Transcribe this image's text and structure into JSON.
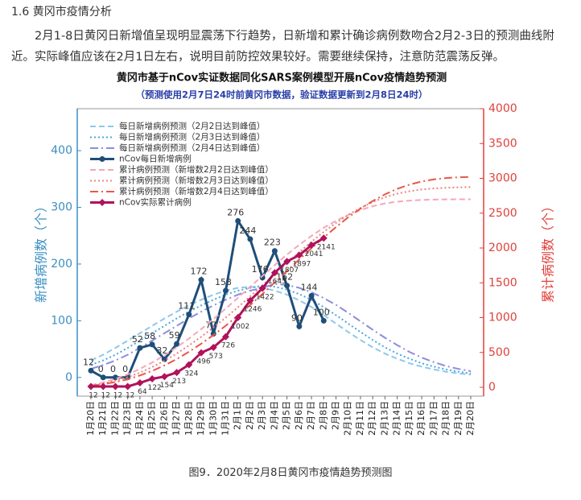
{
  "heading": "1.6  黄冈市疫情分析",
  "paragraph": "2月1-8日黄冈日新增值呈现明显震荡下行趋势，日新增和累计确诊病例数吻合2月2-3日的预测曲线附近。实际峰值应该在2月1日左右，说明目前防控效果较好。需要继续保持，注意防范震荡反弹。",
  "caption": "图9．2020年2月8日黄冈市疫情趋势预测图",
  "chart_data": {
    "type": "line",
    "title": "黄冈市基于nCov实证数据同化SARS案例模型开展nCov疫情趋势预测",
    "subtitle": "（预测使用2月7日24时前黄冈市数据，验证数据更新到2月8日24时）",
    "ylabel": "新增病例数（个）",
    "y2label": "累计病例数（个）",
    "categories": [
      "1月20日",
      "1月21日",
      "1月22日",
      "1月23日",
      "1月24日",
      "1月25日",
      "1月26日",
      "1月27日",
      "1月28日",
      "1月29日",
      "1月30日",
      "1月31日",
      "2月1日",
      "2月2日",
      "2月3日",
      "2月4日",
      "2月5日",
      "2月6日",
      "2月7日",
      "2月8日",
      "2月9日",
      "2月10日",
      "2月11日",
      "2月12日",
      "2月13日",
      "2月14日",
      "2月15日",
      "2月16日",
      "2月17日",
      "2月18日",
      "2月19日",
      "2月20日"
    ],
    "ylim": [
      -33,
      474
    ],
    "yticks": [
      0,
      100,
      200,
      300,
      400
    ],
    "y2lim": [
      -127,
      4000
    ],
    "y2ticks": [
      0,
      500,
      1000,
      1500,
      2000,
      2500,
      3000,
      3500,
      4000
    ],
    "legend": "upper left",
    "series": [
      {
        "name": "每日新增病例预测（2月2日达到峰值）",
        "color": "#8ec8ec",
        "style": "dashed",
        "values": [
          30,
          40,
          52,
          65,
          78,
          91,
          104,
          116,
          127,
          137,
          146,
          153,
          158,
          160,
          158,
          153,
          146,
          136,
          124,
          110,
          95,
          80,
          66,
          53,
          42,
          33,
          25,
          19,
          14,
          10,
          7,
          5
        ]
      },
      {
        "name": "每日新增病例预测（2月3日达到峰值）",
        "color": "#4aa6e0",
        "style": "dotted",
        "values": [
          22,
          30,
          40,
          52,
          65,
          78,
          91,
          104,
          116,
          127,
          137,
          146,
          153,
          158,
          162,
          160,
          155,
          147,
          137,
          124,
          110,
          95,
          80,
          66,
          53,
          42,
          33,
          25,
          19,
          14,
          10,
          7
        ]
      },
      {
        "name": "每日新增病例预测（2月4日达到峰值）",
        "color": "#8c8ce0",
        "style": "dashdot",
        "values": [
          15,
          22,
          30,
          40,
          52,
          65,
          78,
          91,
          104,
          116,
          127,
          137,
          146,
          153,
          158,
          165,
          163,
          158,
          150,
          140,
          128,
          114,
          99,
          84,
          70,
          57,
          45,
          35,
          27,
          20,
          15,
          11
        ]
      },
      {
        "name": "nCov每日新增病例",
        "color": "#1f4e79",
        "style": "solid",
        "marker": "circle",
        "values": [
          12,
          0,
          0,
          0,
          52,
          58,
          32,
          59,
          111,
          172,
          77,
          153,
          276,
          244,
          176,
          223,
          162,
          90,
          144,
          100,
          null,
          null,
          null,
          null,
          null,
          null,
          null,
          null,
          null,
          null,
          null,
          null
        ]
      },
      {
        "name": "累计病例预测（新增数2月2日达到峰值）",
        "color": "#f4a8b8",
        "style": "dashed",
        "axis": "y2",
        "values": [
          30,
          70,
          120,
          185,
          265,
          355,
          460,
          575,
          700,
          835,
          980,
          1130,
          1285,
          1445,
          1600,
          1755,
          1905,
          2045,
          2175,
          2290,
          2390,
          2475,
          2545,
          2600,
          2640,
          2665,
          2680,
          2690,
          2695,
          2698,
          2700,
          2700
        ]
      },
      {
        "name": "累计病例预测（新增数2月3日达到峰值）",
        "color": "#f08080",
        "style": "dotted",
        "axis": "y2",
        "values": [
          25,
          55,
          95,
          145,
          210,
          290,
          380,
          485,
          600,
          725,
          860,
          1000,
          1150,
          1305,
          1465,
          1625,
          1785,
          1940,
          2090,
          2230,
          2360,
          2475,
          2575,
          2660,
          2730,
          2780,
          2815,
          2840,
          2855,
          2865,
          2870,
          2875
        ]
      },
      {
        "name": "累计病例预测（新增数2月4日达到峰值）",
        "color": "#e8584a",
        "style": "dashdot",
        "axis": "y2",
        "values": [
          20,
          45,
          75,
          115,
          170,
          235,
          315,
          405,
          510,
          625,
          750,
          885,
          1030,
          1180,
          1340,
          1505,
          1670,
          1835,
          1995,
          2150,
          2300,
          2440,
          2565,
          2675,
          2770,
          2850,
          2910,
          2955,
          2985,
          3005,
          3015,
          3020
        ]
      },
      {
        "name": "nCov实际累计病例",
        "color": "#b0125b",
        "style": "solid",
        "marker": "diamond",
        "axis": "y2",
        "values": [
          12,
          12,
          12,
          12,
          64,
          122,
          154,
          213,
          324,
          496,
          573,
          726,
          1002,
          1246,
          1422,
          1645,
          1807,
          1897,
          2041,
          2141,
          null,
          null,
          null,
          null,
          null,
          null,
          null,
          null,
          null,
          null,
          null,
          null
        ]
      }
    ]
  }
}
